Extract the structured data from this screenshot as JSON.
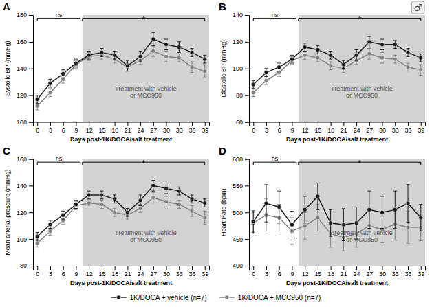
{
  "chart_data": [
    {
      "type": "line",
      "title": "A",
      "xlabel": "Days post-1K/DOCA/salt treatment",
      "ylabel": "Systolic BP (mmHg)",
      "x": [
        0,
        3,
        6,
        9,
        12,
        15,
        18,
        21,
        24,
        27,
        30,
        33,
        36,
        39
      ],
      "xlim": [
        -1,
        40
      ],
      "xticks": [
        0,
        3,
        6,
        9,
        12,
        15,
        18,
        21,
        24,
        27,
        30,
        33,
        36,
        39
      ],
      "ylim": [
        100,
        180
      ],
      "yticks": [
        100,
        120,
        140,
        160,
        180
      ],
      "marker": "circle",
      "shaded_region": {
        "x": [
          10.5,
          40
        ],
        "color": "#d3d3d3"
      },
      "brackets": [
        {
          "label": "ns",
          "x": [
            0,
            10
          ]
        },
        {
          "label": "*",
          "x": [
            10.5,
            39
          ]
        }
      ],
      "annotations": [
        "Treatment with vehicle\nor MCC950"
      ],
      "series": [
        {
          "name": "1K/DOCA + vehicle (n=7)",
          "color": "#1a1a1a",
          "values": [
            117,
            129,
            136,
            144,
            150,
            152,
            150,
            142,
            149,
            162,
            158,
            156,
            152,
            147
          ],
          "err": [
            3,
            3,
            3,
            3,
            3,
            3,
            3,
            4,
            4,
            5,
            4,
            4,
            3,
            3
          ]
        },
        {
          "name": "1K/DOCA + MCC950 (n=7)",
          "color": "#808080",
          "values": [
            112,
            122,
            132,
            143,
            149,
            150,
            147,
            141,
            146,
            153,
            149,
            148,
            141,
            138
          ],
          "err": [
            3,
            3,
            3,
            3,
            3,
            3,
            3,
            3,
            3,
            4,
            4,
            3,
            4,
            5
          ]
        }
      ]
    },
    {
      "type": "line",
      "title": "B",
      "xlabel": "Days post-1K/DOCA/salt treatment",
      "ylabel": "Diastolic BP (mmHg)",
      "x": [
        0,
        3,
        6,
        9,
        12,
        15,
        18,
        21,
        24,
        27,
        30,
        33,
        36,
        39
      ],
      "xlim": [
        -1,
        40
      ],
      "xticks": [
        0,
        3,
        6,
        9,
        12,
        15,
        18,
        21,
        24,
        27,
        30,
        33,
        36,
        39
      ],
      "ylim": [
        60,
        140
      ],
      "yticks": [
        60,
        80,
        100,
        120,
        140
      ],
      "marker": "circle",
      "shaded_region": {
        "x": [
          10.5,
          40
        ],
        "color": "#d3d3d3"
      },
      "brackets": [
        {
          "label": "ns",
          "x": [
            0,
            10
          ]
        },
        {
          "label": "*",
          "x": [
            10.5,
            39
          ]
        }
      ],
      "annotations": [
        "Treatment with vehicle\nor MCC950",
        "♂"
      ],
      "series": [
        {
          "name": "1K/DOCA + vehicle (n=7)",
          "color": "#1a1a1a",
          "values": [
            88,
            97,
            101,
            107,
            116,
            114,
            110,
            103,
            110,
            120,
            118,
            118,
            112,
            108
          ],
          "err": [
            3,
            3,
            3,
            3,
            3,
            3,
            3,
            3,
            4,
            4,
            4,
            3,
            3,
            3
          ]
        },
        {
          "name": "1K/DOCA + MCC950 (n=7)",
          "color": "#808080",
          "values": [
            82,
            91,
            97,
            106,
            110,
            108,
            102,
            100,
            106,
            111,
            108,
            107,
            101,
            99
          ],
          "err": [
            3,
            3,
            3,
            3,
            3,
            3,
            3,
            3,
            3,
            4,
            4,
            3,
            3,
            4
          ]
        }
      ]
    },
    {
      "type": "line",
      "title": "C",
      "xlabel": "Days post-1K/DOCA/salt treatment",
      "ylabel": "Mean arterial pressure (mmHg)",
      "x": [
        0,
        3,
        6,
        9,
        12,
        15,
        18,
        21,
        24,
        27,
        30,
        33,
        36,
        39
      ],
      "xlim": [
        -1,
        40
      ],
      "xticks": [
        0,
        3,
        6,
        9,
        12,
        15,
        18,
        21,
        24,
        27,
        30,
        33,
        36,
        39
      ],
      "ylim": [
        80,
        160
      ],
      "yticks": [
        80,
        100,
        120,
        140,
        160
      ],
      "marker": "circle",
      "shaded_region": {
        "x": [
          10.5,
          40
        ],
        "color": "#d3d3d3"
      },
      "brackets": [
        {
          "label": "ns",
          "x": [
            0,
            10
          ]
        },
        {
          "label": "*",
          "x": [
            10.5,
            39
          ]
        }
      ],
      "annotations": [
        "Treatment with vehicle\nor MCC950"
      ],
      "series": [
        {
          "name": "1K/DOCA + vehicle (n=7)",
          "color": "#1a1a1a",
          "values": [
            102,
            111,
            118,
            126,
            133,
            133,
            130,
            120,
            129,
            140,
            138,
            136,
            130,
            127
          ],
          "err": [
            3,
            3,
            3,
            3,
            3,
            3,
            3,
            3,
            4,
            4,
            4,
            3,
            3,
            3
          ]
        },
        {
          "name": "1K/DOCA + MCC950 (n=7)",
          "color": "#808080",
          "values": [
            97,
            106,
            114,
            125,
            127,
            126,
            120,
            118,
            123,
            131,
            128,
            126,
            121,
            116
          ],
          "err": [
            3,
            3,
            3,
            3,
            3,
            3,
            3,
            3,
            3,
            4,
            4,
            3,
            4,
            5
          ]
        }
      ]
    },
    {
      "type": "line",
      "title": "D",
      "xlabel": "Days post-1K/DOCA/salt treatment",
      "ylabel": "Heart Rate (bpm)",
      "x": [
        0,
        3,
        6,
        9,
        12,
        15,
        18,
        21,
        24,
        27,
        30,
        33,
        36,
        39
      ],
      "xlim": [
        -1,
        40
      ],
      "xticks": [
        0,
        3,
        6,
        9,
        12,
        15,
        18,
        21,
        24,
        27,
        30,
        33,
        36,
        39
      ],
      "ylim": [
        400,
        600
      ],
      "yticks": [
        400,
        450,
        500,
        550,
        600
      ],
      "marker": "circle",
      "shaded_region": {
        "x": [
          10.5,
          40
        ],
        "color": "#d3d3d3"
      },
      "brackets": [
        {
          "label": "ns",
          "x": [
            0,
            10
          ]
        },
        {
          "label": "*",
          "x": [
            10.5,
            39
          ]
        }
      ],
      "annotations": [
        "Treatment with vehicle\nor MCC950"
      ],
      "series": [
        {
          "name": "1K/DOCA + vehicle (n=7)",
          "color": "#1a1a1a",
          "values": [
            483,
            517,
            510,
            477,
            505,
            530,
            480,
            477,
            480,
            505,
            500,
            505,
            517,
            490
          ],
          "err": [
            20,
            35,
            30,
            25,
            25,
            25,
            25,
            30,
            30,
            35,
            30,
            35,
            35,
            25
          ]
        },
        {
          "name": "1K/DOCA + MCC950 (n=7)",
          "color": "#808080",
          "values": [
            480,
            495,
            490,
            465,
            475,
            490,
            460,
            453,
            460,
            475,
            468,
            478,
            472,
            472
          ],
          "err": [
            20,
            30,
            25,
            25,
            25,
            25,
            25,
            25,
            25,
            30,
            25,
            30,
            30,
            25
          ]
        }
      ]
    }
  ]
}
